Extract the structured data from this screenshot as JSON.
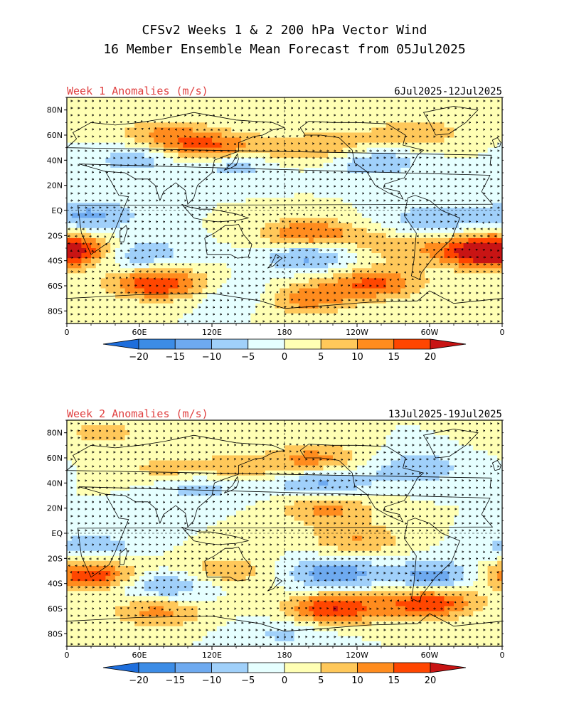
{
  "title": {
    "line1": "CFSv2 Weeks 1 & 2 200 hPa Vector Wind",
    "line2": "16 Member Ensemble Mean Forecast from 05Jul2025"
  },
  "panels": [
    {
      "id": "week1",
      "title": "Week 1 Anomalies (m/s)",
      "date_range": "6Jul2025-12Jul2025",
      "lat_labels": [
        "80N",
        "60N",
        "40N",
        "20N",
        "EQ",
        "20S",
        "40S",
        "60S",
        "80S"
      ],
      "lon_labels": [
        "0",
        "60E",
        "120E",
        "180",
        "120W",
        "60W",
        "0"
      ],
      "anomaly_blobs": [
        {
          "lon": 120,
          "lat": 48,
          "value": 20
        },
        {
          "lon": 172,
          "lat": 46,
          "value": 9
        },
        {
          "lon": 225,
          "lat": 50,
          "value": 10
        },
        {
          "lon": 80,
          "lat": 60,
          "value": 11
        },
        {
          "lon": 290,
          "lat": 62,
          "value": 9
        },
        {
          "lon": 140,
          "lat": 40,
          "value": -16
        },
        {
          "lon": 60,
          "lat": 42,
          "value": -9
        },
        {
          "lon": 250,
          "lat": 40,
          "value": -12
        },
        {
          "lon": 5,
          "lat": -32,
          "value": 20
        },
        {
          "lon": 75,
          "lat": -58,
          "value": 20
        },
        {
          "lon": 200,
          "lat": -20,
          "value": 18
        },
        {
          "lon": 255,
          "lat": -58,
          "value": 16
        },
        {
          "lon": 195,
          "lat": -70,
          "value": 14
        },
        {
          "lon": 338,
          "lat": -33,
          "value": 16
        },
        {
          "lon": 55,
          "lat": -35,
          "value": -12
        },
        {
          "lon": 200,
          "lat": -35,
          "value": -14
        },
        {
          "lon": 20,
          "lat": -4,
          "value": -11
        },
        {
          "lon": 300,
          "lat": -8,
          "value": -9
        },
        {
          "lon": 270,
          "lat": -28,
          "value": 8
        },
        {
          "lon": 150,
          "lat": -68,
          "value": -7
        }
      ]
    },
    {
      "id": "week2",
      "title": "Week 2 Anomalies (m/s)",
      "date_range": "13Jul2025-19Jul2025",
      "lat_labels": [
        "80N",
        "60N",
        "40N",
        "20N",
        "EQ",
        "20S",
        "40S",
        "60S",
        "80S"
      ],
      "lon_labels": [
        "0",
        "60E",
        "120E",
        "180",
        "120W",
        "60W",
        "0"
      ],
      "anomaly_blobs": [
        {
          "lon": 205,
          "lat": 58,
          "value": 13
        },
        {
          "lon": 215,
          "lat": 20,
          "value": 12
        },
        {
          "lon": 240,
          "lat": -5,
          "value": 10
        },
        {
          "lon": 85,
          "lat": 50,
          "value": 8
        },
        {
          "lon": 140,
          "lat": 50,
          "value": 8
        },
        {
          "lon": 30,
          "lat": 80,
          "value": 7
        },
        {
          "lon": 210,
          "lat": 40,
          "value": -13
        },
        {
          "lon": 110,
          "lat": 38,
          "value": -10
        },
        {
          "lon": 290,
          "lat": 52,
          "value": -9
        },
        {
          "lon": 20,
          "lat": -33,
          "value": 20
        },
        {
          "lon": 300,
          "lat": -55,
          "value": 20
        },
        {
          "lon": 220,
          "lat": -60,
          "value": 20
        },
        {
          "lon": 75,
          "lat": -62,
          "value": 12
        },
        {
          "lon": 130,
          "lat": -30,
          "value": 9
        },
        {
          "lon": 80,
          "lat": -42,
          "value": -12
        },
        {
          "lon": 220,
          "lat": -32,
          "value": -14
        },
        {
          "lon": 305,
          "lat": -35,
          "value": -14
        },
        {
          "lon": 20,
          "lat": -12,
          "value": -9
        },
        {
          "lon": 180,
          "lat": -80,
          "value": -6
        }
      ]
    }
  ],
  "colorbar": {
    "tick_labels": [
      "-20",
      "-15",
      "-10",
      "-5",
      "0",
      "5",
      "10",
      "15",
      "20"
    ],
    "colors": [
      "#1e6edc",
      "#3c8ce6",
      "#6eaaf0",
      "#a0d0fa",
      "#e6ffff",
      "#ffffb4",
      "#ffc85a",
      "#ff8c1e",
      "#ff4600",
      "#c81414"
    ]
  },
  "style": {
    "neg_far": "#1e6edc",
    "pos_far": "#c81414"
  }
}
